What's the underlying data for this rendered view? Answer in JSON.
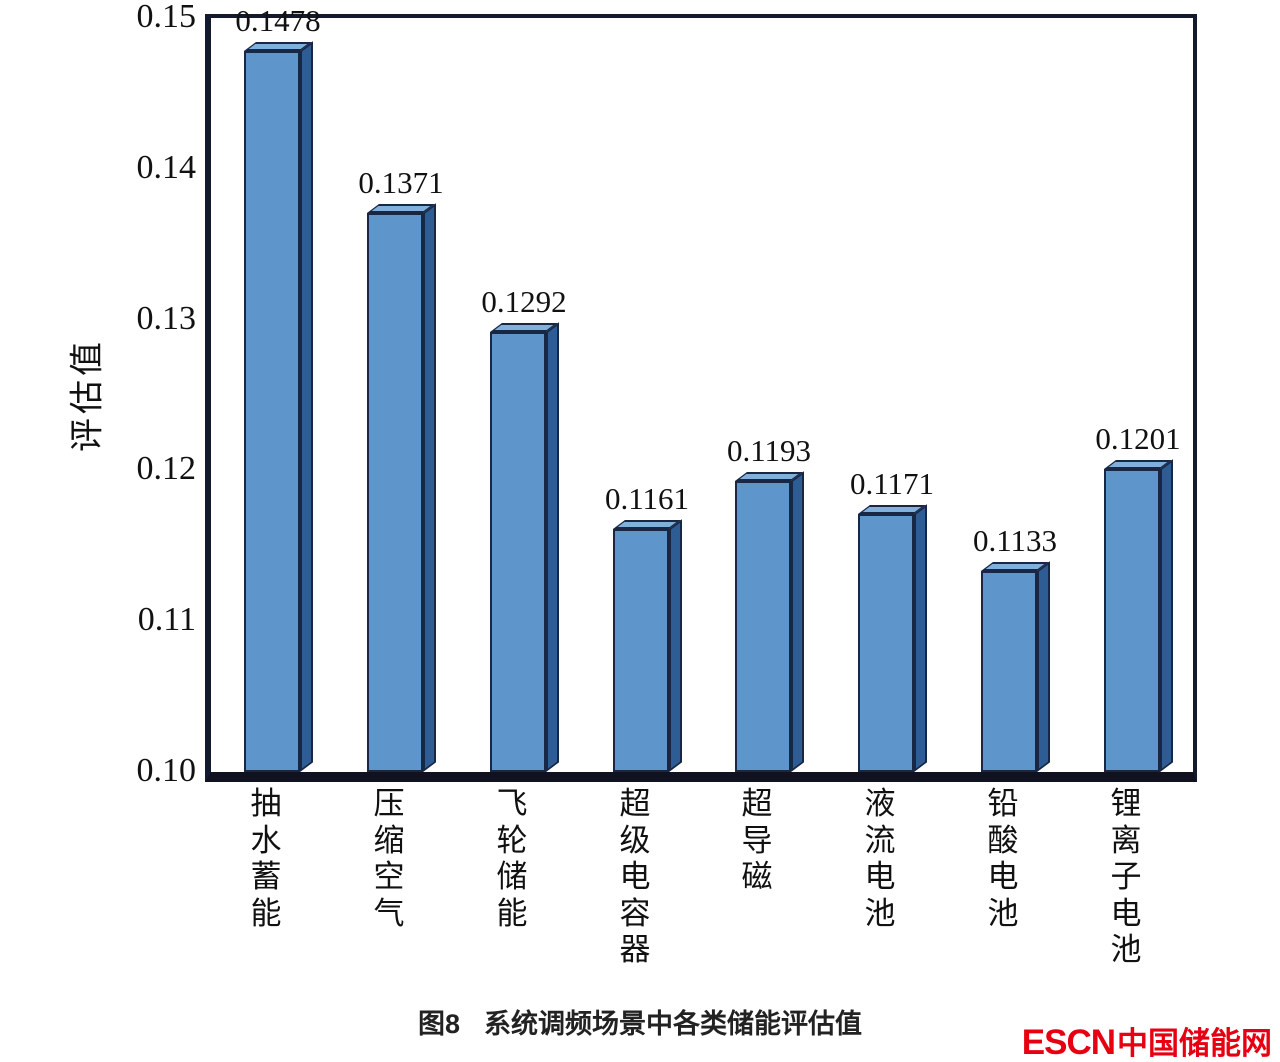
{
  "chart_data": {
    "type": "bar",
    "title": "图8　系统调频场景中各类储能评估值",
    "ylabel": "评估值",
    "xlabel": "",
    "ylim": [
      0.1,
      0.15
    ],
    "yticks": [
      0.15,
      0.14,
      0.13,
      0.12,
      0.11,
      0.1
    ],
    "ytick_labels": [
      "0.15",
      "0.14",
      "0.13",
      "0.12",
      "0.11",
      "0.10"
    ],
    "categories": [
      "抽水蓄能",
      "压缩空气",
      "飞轮储能",
      "超级电容器",
      "超导磁",
      "液流电池",
      "铅酸电池",
      "锂离子电池"
    ],
    "values": [
      0.1478,
      0.1371,
      0.1292,
      0.1161,
      0.1193,
      0.1171,
      0.1133,
      0.1201
    ],
    "value_labels": [
      "0.1478",
      "0.1371",
      "0.1292",
      "0.1161",
      "0.1193",
      "0.1171",
      "0.1133",
      "0.1201"
    ],
    "grid": false,
    "legend": false,
    "bar_style": "pseudo-3d",
    "colors": {
      "bar_front": "#5e95cb",
      "bar_side": "#2d5d94",
      "bar_top": "#82b0dd",
      "bar_outline": "#182743",
      "axis": "#10131f"
    }
  },
  "caption": {
    "label": "图8",
    "text": "系统调频场景中各类储能评估值"
  },
  "watermark": {
    "latin": "ESCN",
    "chinese": "中国储能网",
    "color": "#e60012"
  }
}
